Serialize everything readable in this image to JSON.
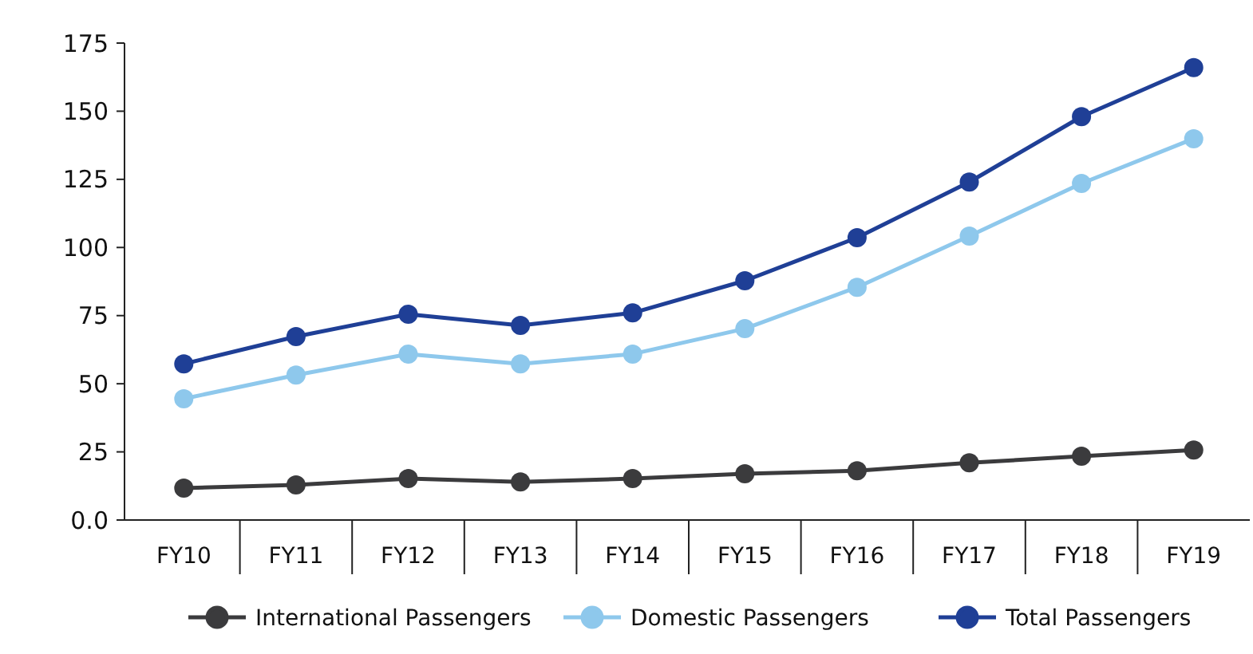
{
  "chart_data": {
    "type": "line",
    "categories": [
      "FY10",
      "FY11",
      "FY12",
      "FY13",
      "FY14",
      "FY15",
      "FY16",
      "FY17",
      "FY18",
      "FY19"
    ],
    "ylim": [
      0,
      175
    ],
    "yticks": [
      {
        "value": 0,
        "label": "0.0"
      },
      25,
      50,
      75,
      100,
      125,
      150,
      175
    ],
    "legend": "bottom",
    "marker": "circle",
    "line_style": "solid",
    "series": [
      {
        "name": "International Passengers",
        "color": "#3b3b3d",
        "values": [
          11.7,
          12.9,
          15.2,
          14,
          15.2,
          17,
          18.1,
          21,
          23.4,
          25.7
        ]
      },
      {
        "name": "Domestic Passengers",
        "color": "#8ec8ec",
        "values": [
          44.5,
          53.2,
          60.9,
          57.3,
          60.9,
          70.2,
          85.4,
          104.2,
          123.5,
          139.9
        ]
      },
      {
        "name": "Total Passengers",
        "color": "#1f3f96",
        "values": [
          57.3,
          67.3,
          75.5,
          71.4,
          76,
          87.8,
          103.6,
          124,
          148,
          166
        ]
      }
    ]
  }
}
